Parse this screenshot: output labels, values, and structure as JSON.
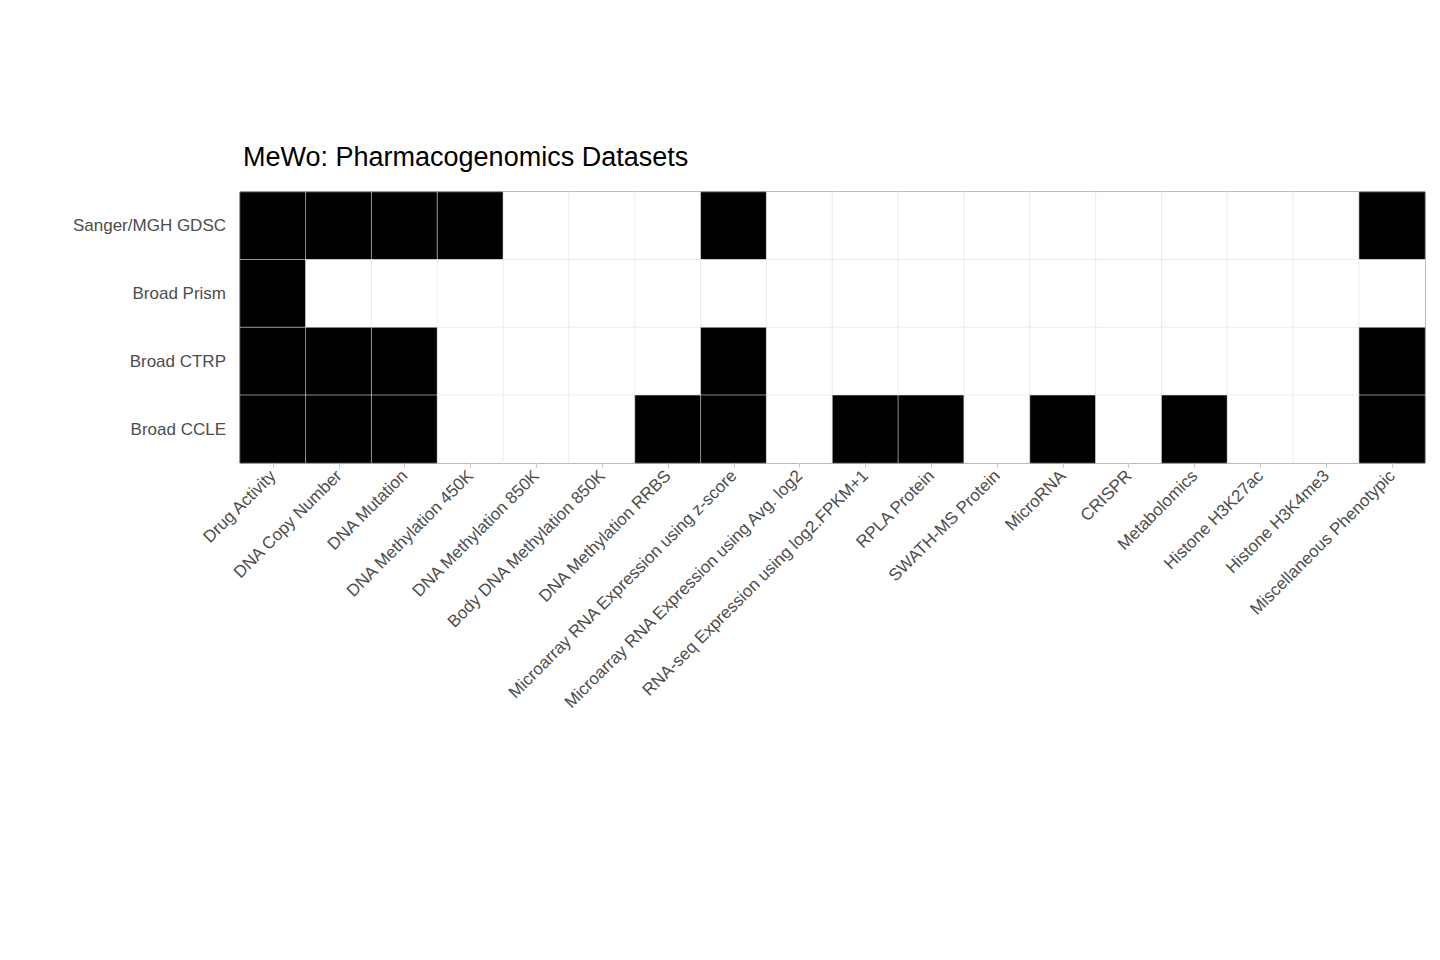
{
  "chart_data": {
    "type": "heatmap",
    "title": "MeWo: Pharmacogenomics Datasets",
    "categories": [
      "Drug Activity",
      "DNA Copy Number",
      "DNA Mutation",
      "DNA Methylation 450K",
      "DNA Methylation 850K",
      "Body DNA Methylation 850K",
      "DNA Methylation RRBS",
      "Microarray RNA Expression using z-score",
      "Microarray RNA Expression using Avg. log2",
      "RNA-seq Expression using log2.FPKM+1",
      "RPLA Protein",
      "SWATH-MS Protein",
      "MicroRNA",
      "CRISPR",
      "Metabolomics",
      "Histone H3K27ac",
      "Histone H3K4me3",
      "Miscellaneous Phenotypic"
    ],
    "rows": [
      "Sanger/MGH GDSC",
      "Broad Prism",
      "Broad CTRP",
      "Broad CCLE"
    ],
    "cells": [
      [
        1,
        1,
        1,
        1,
        0,
        0,
        0,
        1,
        0,
        0,
        0,
        0,
        0,
        0,
        0,
        0,
        0,
        1
      ],
      [
        1,
        0,
        0,
        0,
        0,
        0,
        0,
        0,
        0,
        0,
        0,
        0,
        0,
        0,
        0,
        0,
        0,
        0
      ],
      [
        1,
        1,
        1,
        0,
        0,
        0,
        0,
        1,
        0,
        0,
        0,
        0,
        0,
        0,
        0,
        0,
        0,
        1
      ],
      [
        1,
        1,
        1,
        0,
        0,
        0,
        1,
        1,
        0,
        1,
        1,
        0,
        1,
        0,
        1,
        0,
        0,
        1
      ]
    ],
    "color": "#000000"
  }
}
